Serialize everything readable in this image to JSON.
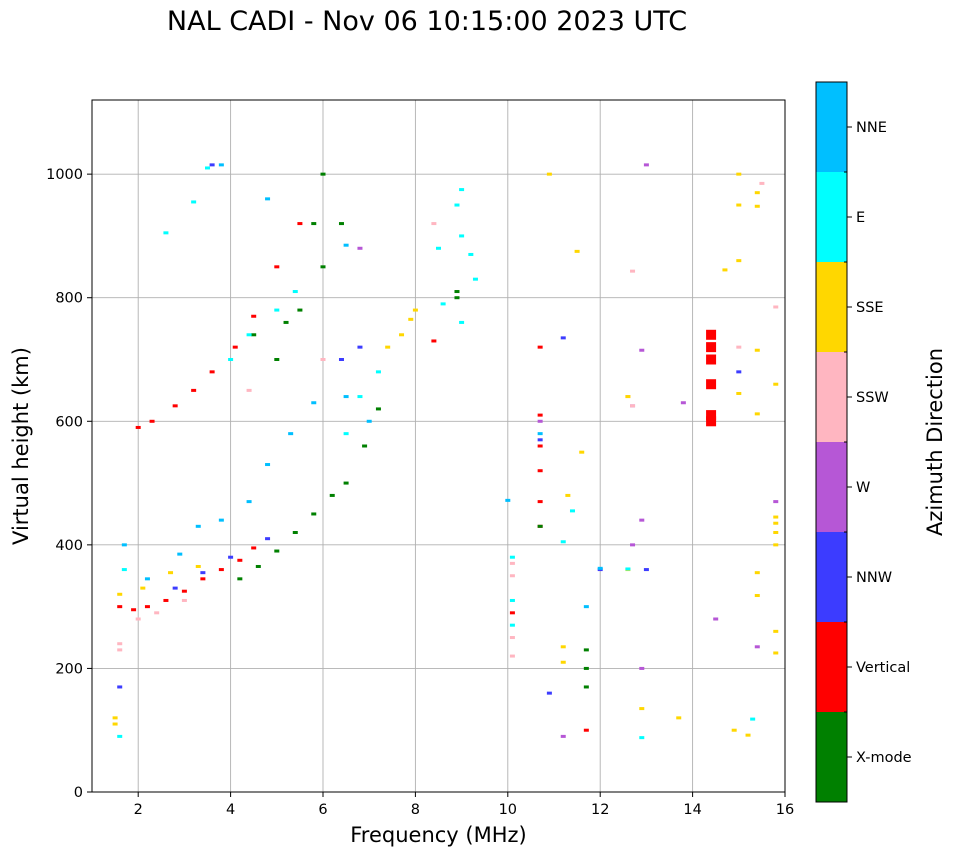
{
  "chart_data": {
    "type": "scatter",
    "title": "NAL CADI - Nov 06 10:15:00 2023 UTC",
    "xlabel": "Frequency (MHz)",
    "ylabel": "Virtual height (km)",
    "xlim": [
      1,
      16
    ],
    "ylim": [
      0,
      1120
    ],
    "xticks": [
      2,
      4,
      6,
      8,
      10,
      12,
      14,
      16
    ],
    "yticks": [
      0,
      200,
      400,
      600,
      800,
      1000
    ],
    "grid": true,
    "colorbar": {
      "label": "Azimuth Direction",
      "categories": [
        {
          "name": "X-mode",
          "color": "#008000"
        },
        {
          "name": "Vertical",
          "color": "#ff0000"
        },
        {
          "name": "NNW",
          "color": "#3c3cff"
        },
        {
          "name": "W",
          "color": "#b657d6"
        },
        {
          "name": "SSW",
          "color": "#ffb6c1"
        },
        {
          "name": "SSE",
          "color": "#ffd700"
        },
        {
          "name": "E",
          "color": "#00ffff"
        },
        {
          "name": "NNE",
          "color": "#00bfff"
        }
      ]
    },
    "series": [
      {
        "name": "Vertical",
        "points": [
          [
            1.6,
            300
          ],
          [
            1.9,
            295
          ],
          [
            2.2,
            300
          ],
          [
            2.6,
            310
          ],
          [
            3.0,
            325
          ],
          [
            3.4,
            345
          ],
          [
            3.8,
            360
          ],
          [
            4.2,
            375
          ],
          [
            4.5,
            395
          ],
          [
            2.0,
            590
          ],
          [
            2.3,
            600
          ],
          [
            2.8,
            625
          ],
          [
            3.2,
            650
          ],
          [
            3.6,
            680
          ],
          [
            4.1,
            720
          ],
          [
            4.5,
            770
          ],
          [
            5.0,
            850
          ],
          [
            5.5,
            920
          ],
          [
            10.7,
            430
          ],
          [
            10.7,
            470
          ],
          [
            10.7,
            520
          ],
          [
            10.7,
            560
          ],
          [
            10.7,
            610
          ],
          [
            10.7,
            720
          ],
          [
            14.4,
            600
          ],
          [
            14.4,
            610
          ],
          [
            14.4,
            660
          ],
          [
            14.4,
            700
          ],
          [
            14.4,
            720
          ],
          [
            14.4,
            740
          ],
          [
            10.1,
            290
          ],
          [
            11.7,
            100
          ],
          [
            8.4,
            730
          ]
        ]
      },
      {
        "name": "X-mode",
        "points": [
          [
            4.2,
            345
          ],
          [
            4.6,
            365
          ],
          [
            5.0,
            390
          ],
          [
            5.4,
            420
          ],
          [
            5.8,
            450
          ],
          [
            6.2,
            480
          ],
          [
            6.5,
            500
          ],
          [
            6.9,
            560
          ],
          [
            7.2,
            620
          ],
          [
            5.0,
            700
          ],
          [
            5.5,
            780
          ],
          [
            6.0,
            850
          ],
          [
            5.8,
            920
          ],
          [
            6.0,
            1000
          ],
          [
            10.7,
            430
          ],
          [
            11.7,
            170
          ],
          [
            11.7,
            200
          ],
          [
            11.7,
            230
          ],
          [
            6.4,
            920
          ],
          [
            8.9,
            800
          ],
          [
            8.9,
            810
          ],
          [
            4.5,
            740
          ],
          [
            5.2,
            760
          ]
        ]
      },
      {
        "name": "NNW",
        "points": [
          [
            1.6,
            170
          ],
          [
            2.8,
            330
          ],
          [
            3.4,
            355
          ],
          [
            4.0,
            380
          ],
          [
            4.8,
            410
          ],
          [
            6.4,
            700
          ],
          [
            6.8,
            720
          ],
          [
            10.7,
            570
          ],
          [
            12.0,
            360
          ],
          [
            13.0,
            360
          ],
          [
            15.0,
            680
          ],
          [
            10.9,
            160
          ],
          [
            11.2,
            735
          ],
          [
            3.6,
            1015
          ]
        ]
      },
      {
        "name": "W",
        "points": [
          [
            6.8,
            880
          ],
          [
            12.9,
            715
          ],
          [
            12.7,
            625
          ],
          [
            12.9,
            440
          ],
          [
            12.7,
            400
          ],
          [
            13.8,
            630
          ],
          [
            12.9,
            200
          ],
          [
            11.2,
            90
          ],
          [
            14.5,
            280
          ],
          [
            15.4,
            235
          ],
          [
            15.8,
            470
          ],
          [
            13.0,
            1015
          ],
          [
            10.7,
            600
          ]
        ]
      },
      {
        "name": "SSW",
        "points": [
          [
            1.6,
            240
          ],
          [
            1.6,
            230
          ],
          [
            2.0,
            280
          ],
          [
            2.4,
            290
          ],
          [
            3.0,
            310
          ],
          [
            4.4,
            650
          ],
          [
            6.0,
            700
          ],
          [
            10.1,
            220
          ],
          [
            10.1,
            250
          ],
          [
            10.1,
            350
          ],
          [
            10.1,
            370
          ],
          [
            8.4,
            920
          ],
          [
            12.6,
            640
          ],
          [
            12.7,
            625
          ],
          [
            15.0,
            720
          ],
          [
            15.8,
            785
          ],
          [
            15.5,
            985
          ],
          [
            12.7,
            843
          ]
        ]
      },
      {
        "name": "SSE",
        "points": [
          [
            1.5,
            110
          ],
          [
            1.5,
            120
          ],
          [
            1.6,
            320
          ],
          [
            2.1,
            330
          ],
          [
            2.7,
            355
          ],
          [
            3.3,
            365
          ],
          [
            7.4,
            720
          ],
          [
            7.7,
            740
          ],
          [
            7.9,
            765
          ],
          [
            8.0,
            780
          ],
          [
            11.2,
            235
          ],
          [
            11.2,
            210
          ],
          [
            11.6,
            550
          ],
          [
            11.3,
            480
          ],
          [
            11.5,
            875
          ],
          [
            12.6,
            360
          ],
          [
            12.6,
            640
          ],
          [
            12.9,
            135
          ],
          [
            13.7,
            120
          ],
          [
            14.9,
            100
          ],
          [
            15.2,
            92
          ],
          [
            15.0,
            645
          ],
          [
            15.0,
            860
          ],
          [
            15.0,
            950
          ],
          [
            15.0,
            1000
          ],
          [
            15.4,
            970
          ],
          [
            15.4,
            948
          ],
          [
            15.8,
            660
          ],
          [
            15.4,
            715
          ],
          [
            15.4,
            612
          ],
          [
            15.4,
            355
          ],
          [
            15.4,
            318
          ],
          [
            15.8,
            260
          ],
          [
            15.8,
            225
          ],
          [
            15.8,
            400
          ],
          [
            15.8,
            420
          ],
          [
            15.8,
            435
          ],
          [
            15.8,
            445
          ],
          [
            14.7,
            845
          ],
          [
            10.9,
            1000
          ]
        ]
      },
      {
        "name": "E",
        "points": [
          [
            1.6,
            90
          ],
          [
            1.7,
            360
          ],
          [
            2.6,
            905
          ],
          [
            3.2,
            955
          ],
          [
            3.5,
            1010
          ],
          [
            4.0,
            700
          ],
          [
            4.4,
            740
          ],
          [
            5.0,
            780
          ],
          [
            5.4,
            810
          ],
          [
            6.5,
            580
          ],
          [
            6.8,
            640
          ],
          [
            7.2,
            680
          ],
          [
            8.5,
            880
          ],
          [
            8.9,
            950
          ],
          [
            9.0,
            900
          ],
          [
            9.0,
            975
          ],
          [
            9.2,
            870
          ],
          [
            8.6,
            790
          ],
          [
            9.0,
            760
          ],
          [
            9.3,
            830
          ],
          [
            10.1,
            270
          ],
          [
            10.1,
            310
          ],
          [
            10.1,
            380
          ],
          [
            11.2,
            405
          ],
          [
            11.4,
            455
          ],
          [
            12.9,
            88
          ],
          [
            15.3,
            118
          ],
          [
            12.6,
            361
          ]
        ]
      },
      {
        "name": "NNE",
        "points": [
          [
            1.7,
            400
          ],
          [
            2.2,
            345
          ],
          [
            2.9,
            385
          ],
          [
            3.3,
            430
          ],
          [
            3.8,
            440
          ],
          [
            4.4,
            470
          ],
          [
            4.8,
            530
          ],
          [
            5.3,
            580
          ],
          [
            5.8,
            630
          ],
          [
            6.5,
            885
          ],
          [
            6.5,
            640
          ],
          [
            7.0,
            600
          ],
          [
            10.0,
            472
          ],
          [
            11.7,
            300
          ],
          [
            12.0,
            362
          ],
          [
            10.7,
            580
          ],
          [
            3.8,
            1015
          ],
          [
            4.8,
            960
          ]
        ]
      }
    ]
  }
}
